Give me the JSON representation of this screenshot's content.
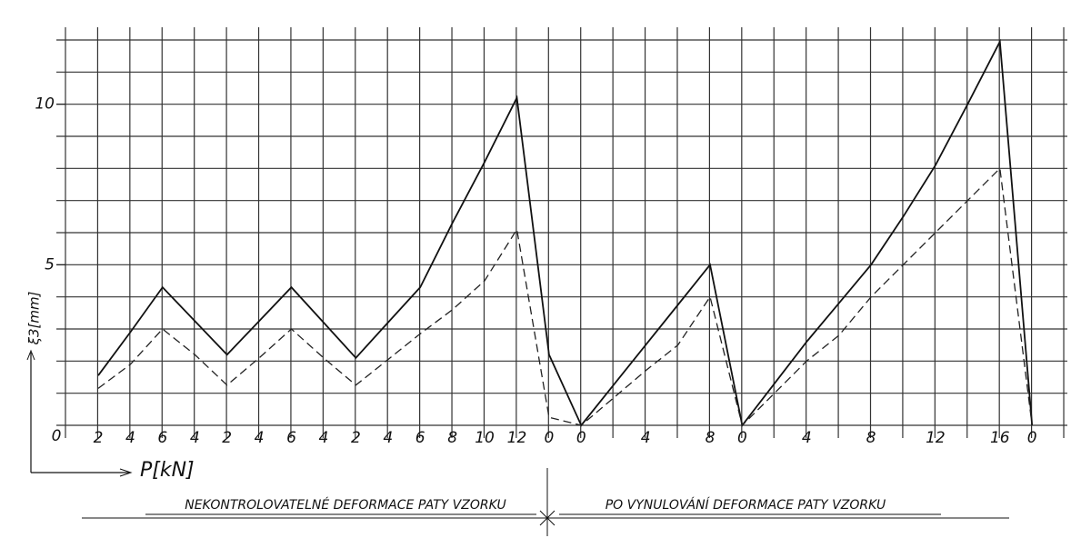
{
  "chart_data": {
    "type": "line",
    "y_label": "ξ3[mm]",
    "x_label": "P[kN]",
    "origin_label": "0",
    "categories": [
      "2",
      "4",
      "6",
      "4",
      "2",
      "4",
      "6",
      "4",
      "2",
      "4",
      "6",
      "8",
      "10",
      "12",
      "0",
      "0",
      null,
      "4",
      null,
      "8",
      "0",
      null,
      "4",
      null,
      "8",
      null,
      "12",
      null,
      "16",
      "0"
    ],
    "series": [
      {
        "color": "#111111",
        "style": "solid",
        "values": [
          1.55,
          2.9,
          4.3,
          3.25,
          2.2,
          3.25,
          4.3,
          3.2,
          2.1,
          3.2,
          4.3,
          6.3,
          8.2,
          10.2,
          2.2,
          0,
          1.25,
          2.5,
          3.75,
          5.0,
          0,
          1.3,
          2.6,
          3.8,
          5.0,
          6.5,
          8.1,
          10.0,
          11.95,
          0
        ]
      },
      {
        "color": "#222222",
        "style": "dashed",
        "values": [
          1.15,
          1.9,
          3.0,
          2.2,
          1.25,
          2.1,
          3.0,
          2.1,
          1.25,
          2.05,
          2.85,
          3.6,
          4.5,
          6.1,
          0.25,
          0,
          0.85,
          1.7,
          2.5,
          4.0,
          0,
          1.0,
          2.0,
          2.8,
          4.0,
          5.0,
          6.0,
          7.0,
          8.0,
          0
        ]
      }
    ],
    "ylim": [
      0,
      12
    ],
    "yticks": [
      5,
      10
    ],
    "ygrid_step": 1,
    "grid": true,
    "sections": [
      "NEKONTROLOVATELNÉ DEFORMACE PATY VZORKU",
      "PO VYNULOVÁNÍ DEFORMACE PATY VZORKU"
    ]
  }
}
